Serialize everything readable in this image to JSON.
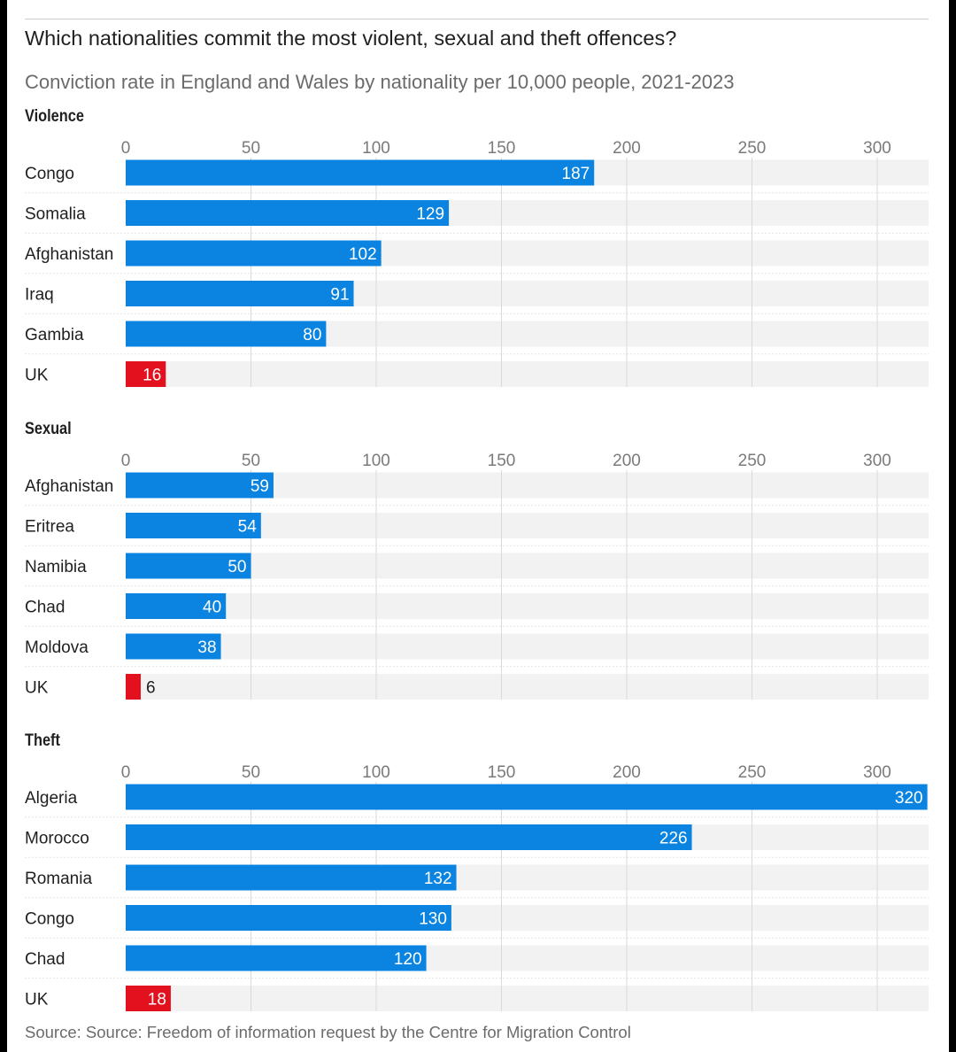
{
  "header": {
    "title": "Which nationalities commit the most violent, sexual and theft offences?",
    "subtitle": "Conviction rate in England and Wales by nationality per 10,000 people, 2021-2023"
  },
  "footer": {
    "source": "Source: Source: Freedom of information request by the Centre for Migration Control"
  },
  "colors": {
    "bar": "#0a84e0",
    "highlight": "#e3101d",
    "track": "#f2f2f2",
    "grid": "#d9d9d9",
    "tick_text": "#7a7a7a",
    "label_text": "#1f1f1f"
  },
  "chart_data": [
    {
      "type": "bar",
      "orientation": "horizontal",
      "title": "Violence",
      "categories": [
        "Congo",
        "Somalia",
        "Afghanistan",
        "Iraq",
        "Gambia",
        "UK"
      ],
      "values": [
        187,
        129,
        102,
        91,
        80,
        16
      ],
      "highlight": "UK",
      "xticks": [
        0,
        50,
        100,
        150,
        200,
        250,
        300
      ],
      "xlim": [
        0,
        320
      ]
    },
    {
      "type": "bar",
      "orientation": "horizontal",
      "title": "Sexual",
      "categories": [
        "Afghanistan",
        "Eritrea",
        "Namibia",
        "Chad",
        "Moldova",
        "UK"
      ],
      "values": [
        59,
        54,
        50,
        40,
        38,
        6
      ],
      "highlight": "UK",
      "xticks": [
        0,
        50,
        100,
        150,
        200,
        250,
        300
      ],
      "xlim": [
        0,
        320
      ]
    },
    {
      "type": "bar",
      "orientation": "horizontal",
      "title": "Theft",
      "categories": [
        "Algeria",
        "Morocco",
        "Romania",
        "Congo",
        "Chad",
        "UK"
      ],
      "values": [
        320,
        226,
        132,
        130,
        120,
        18
      ],
      "highlight": "UK",
      "xticks": [
        0,
        50,
        100,
        150,
        200,
        250,
        300
      ],
      "xlim": [
        0,
        320
      ]
    }
  ]
}
